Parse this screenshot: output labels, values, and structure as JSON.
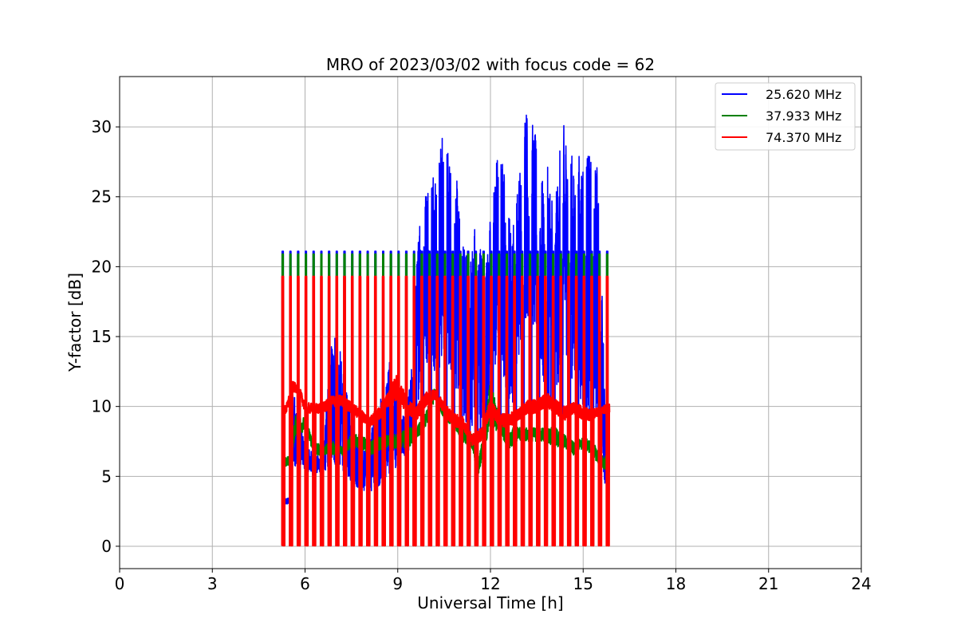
{
  "chart_data": {
    "type": "line",
    "title": "MRO of 2023/03/02 with focus code = 62",
    "xlabel": "Universal Time [h]",
    "ylabel": "Y-factor [dB]",
    "xlim": [
      0,
      24
    ],
    "ylim": [
      -1.6,
      33.6
    ],
    "x_ticks": [
      0,
      3,
      6,
      9,
      12,
      15,
      18,
      21,
      24
    ],
    "y_ticks": [
      0,
      5,
      10,
      15,
      20,
      25,
      30
    ],
    "grid": true,
    "legend_position": "top-right",
    "calibration_cycle_h": 0.25,
    "calibration_pulse_h": 0.09,
    "series": [
      {
        "name": "25.620 MHz",
        "color": "#0000ff",
        "calibration_level": 21.1,
        "envelope": {
          "x": [
            5.25,
            5.5,
            5.6,
            5.8,
            6.0,
            6.3,
            6.6,
            6.8,
            7.0,
            7.2,
            7.5,
            7.8,
            8.0,
            8.2,
            8.5,
            8.7,
            8.9,
            9.1,
            9.3,
            9.5,
            9.7,
            9.9,
            10.1,
            10.3,
            10.5,
            10.7,
            10.9,
            11.1,
            11.3,
            11.5,
            11.7,
            11.9,
            12.1,
            12.3,
            12.5,
            12.7,
            12.9,
            13.1,
            13.3,
            13.5,
            13.7,
            13.9,
            14.1,
            14.3,
            14.5,
            14.7,
            14.9,
            15.1,
            15.3,
            15.5,
            15.7,
            15.85
          ],
          "lower": [
            2.9,
            3.0,
            5.5,
            6.0,
            5.5,
            5.0,
            5.5,
            5.0,
            5.5,
            5.5,
            4.5,
            4.0,
            3.8,
            4.0,
            4.5,
            5.0,
            5.5,
            6.0,
            6.5,
            7.0,
            11.0,
            13.0,
            13.0,
            12.0,
            13.5,
            12.5,
            11.0,
            9.0,
            8.0,
            9.0,
            7.5,
            9.5,
            12.0,
            13.0,
            11.0,
            10.0,
            13.0,
            16.0,
            16.5,
            14.0,
            11.0,
            10.0,
            11.0,
            12.0,
            14.0,
            11.0,
            9.5,
            9.0,
            10.0,
            8.5,
            4.5,
            4.0
          ],
          "upper": [
            3.4,
            3.5,
            11.8,
            9.0,
            7.5,
            6.5,
            6.5,
            14.2,
            16.2,
            13.0,
            9.0,
            7.5,
            7.0,
            9.0,
            11.0,
            13.5,
            11.5,
            9.0,
            10.0,
            14.0,
            25.0,
            25.8,
            28.0,
            28.5,
            30.0,
            28.0,
            26.5,
            22.0,
            20.5,
            23.6,
            22.0,
            21.0,
            27.0,
            29.0,
            26.5,
            22.5,
            26.5,
            32.0,
            31.0,
            29.0,
            26.0,
            27.5,
            24.5,
            30.0,
            30.5,
            27.0,
            28.5,
            29.2,
            27.0,
            28.0,
            11.0,
            10.5
          ]
        }
      },
      {
        "name": "37.933 MHz",
        "color": "#008000",
        "calibration_level": 20.9,
        "envelope": {
          "x": [
            5.25,
            5.5,
            5.7,
            6.0,
            6.3,
            6.6,
            6.9,
            7.2,
            7.5,
            7.8,
            8.1,
            8.4,
            8.7,
            9.0,
            9.3,
            9.6,
            9.9,
            10.2,
            10.5,
            10.8,
            11.1,
            11.4,
            11.6,
            11.8,
            12.0,
            12.3,
            12.6,
            12.9,
            13.2,
            13.5,
            13.8,
            14.1,
            14.4,
            14.7,
            15.0,
            15.3,
            15.6,
            15.85
          ],
          "lower": [
            5.5,
            5.8,
            8.0,
            8.2,
            6.5,
            6.5,
            6.5,
            6.5,
            7.0,
            7.0,
            6.5,
            6.8,
            7.0,
            7.0,
            7.0,
            7.5,
            8.5,
            10.5,
            9.0,
            8.5,
            7.5,
            7.0,
            5.0,
            7.0,
            8.5,
            8.0,
            7.0,
            7.5,
            7.5,
            7.5,
            7.5,
            7.0,
            7.0,
            6.5,
            7.0,
            6.5,
            5.5,
            5.5
          ],
          "upper": [
            6.2,
            6.5,
            9.5,
            9.2,
            7.5,
            7.2,
            7.5,
            7.2,
            8.0,
            8.0,
            7.5,
            7.8,
            8.0,
            8.0,
            8.5,
            8.5,
            9.5,
            11.4,
            10.0,
            9.5,
            8.5,
            8.0,
            6.0,
            8.5,
            12.0,
            9.0,
            8.5,
            8.5,
            8.5,
            8.5,
            8.5,
            8.5,
            8.0,
            7.5,
            7.8,
            7.5,
            6.5,
            6.5
          ]
        }
      },
      {
        "name": "74.370 MHz",
        "color": "#ff0000",
        "calibration_level": 19.3,
        "envelope": {
          "x": [
            5.25,
            5.4,
            5.6,
            5.8,
            6.0,
            6.3,
            6.6,
            6.9,
            7.2,
            7.5,
            7.8,
            8.1,
            8.4,
            8.7,
            9.0,
            9.3,
            9.6,
            9.9,
            10.2,
            10.5,
            10.8,
            11.1,
            11.4,
            11.7,
            12.0,
            12.3,
            12.6,
            12.9,
            13.2,
            13.5,
            13.8,
            14.1,
            14.4,
            14.7,
            15.0,
            15.3,
            15.6,
            15.85
          ],
          "lower": [
            9.2,
            9.5,
            11.0,
            11.0,
            9.5,
            9.5,
            9.5,
            10.0,
            10.0,
            9.5,
            9.0,
            8.5,
            9.0,
            10.0,
            10.5,
            9.5,
            9.0,
            10.0,
            10.5,
            9.5,
            8.5,
            8.5,
            7.2,
            7.5,
            9.5,
            8.5,
            8.5,
            9.0,
            9.5,
            9.5,
            10.0,
            9.5,
            9.0,
            9.5,
            9.0,
            9.0,
            9.5,
            9.5
          ],
          "upper": [
            9.8,
            10.2,
            11.8,
            11.5,
            10.3,
            10.2,
            10.3,
            10.8,
            10.8,
            10.3,
            9.8,
            9.3,
            10.0,
            11.0,
            12.5,
            10.5,
            10.0,
            11.0,
            11.2,
            10.3,
            9.5,
            9.3,
            8.0,
            8.5,
            10.5,
            9.5,
            9.5,
            9.8,
            10.5,
            10.5,
            11.0,
            10.5,
            10.0,
            10.3,
            10.0,
            9.8,
            10.0,
            10.2
          ]
        }
      }
    ]
  }
}
